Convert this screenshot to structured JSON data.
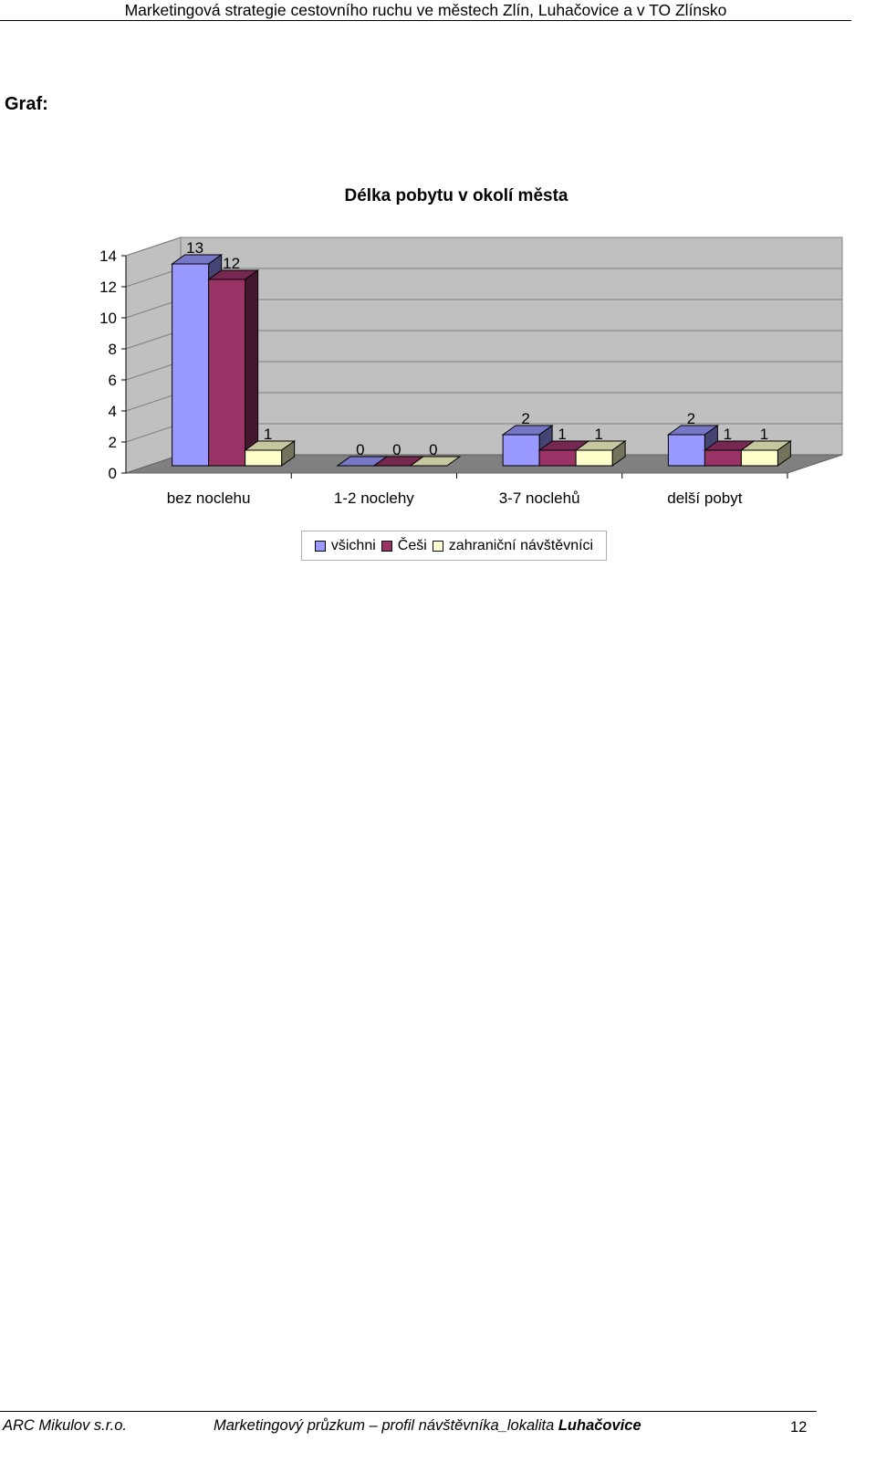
{
  "header": {
    "title": "Marketingová strategie cestovního ruchu ve městech Zlín, Luhačovice a v TO Zlínsko"
  },
  "section_label": "Graf:",
  "chart_data": {
    "type": "bar",
    "style": "3d-clustered",
    "title": "Délka pobytu v okolí města",
    "categories": [
      "bez noclehu",
      "1-2 noclehy",
      "3-7 noclehů",
      "delší pobyt"
    ],
    "series": [
      {
        "name": "všichni",
        "values": [
          13,
          0,
          2,
          2
        ],
        "color": "#9999ff"
      },
      {
        "name": "Češi",
        "values": [
          12,
          0,
          1,
          1
        ],
        "color": "#993366"
      },
      {
        "name": "zahraniční návštěvníci",
        "values": [
          1,
          0,
          1,
          1
        ],
        "color": "#ffffcc"
      }
    ],
    "y_ticks": [
      "0",
      "2",
      "4",
      "6",
      "8",
      "10",
      "12",
      "14"
    ],
    "ylim": [
      0,
      14
    ],
    "grid": true,
    "legend_position": "bottom",
    "wall_color": "#c0c0c0",
    "floor_color": "#808080"
  },
  "footer": {
    "company": "ARC Mikulov s.r.o.",
    "title_prefix": "Marketingový průzkum – profil návštěvníka_lokalita ",
    "title_bold": "Luhačovice",
    "page_number": "12"
  }
}
